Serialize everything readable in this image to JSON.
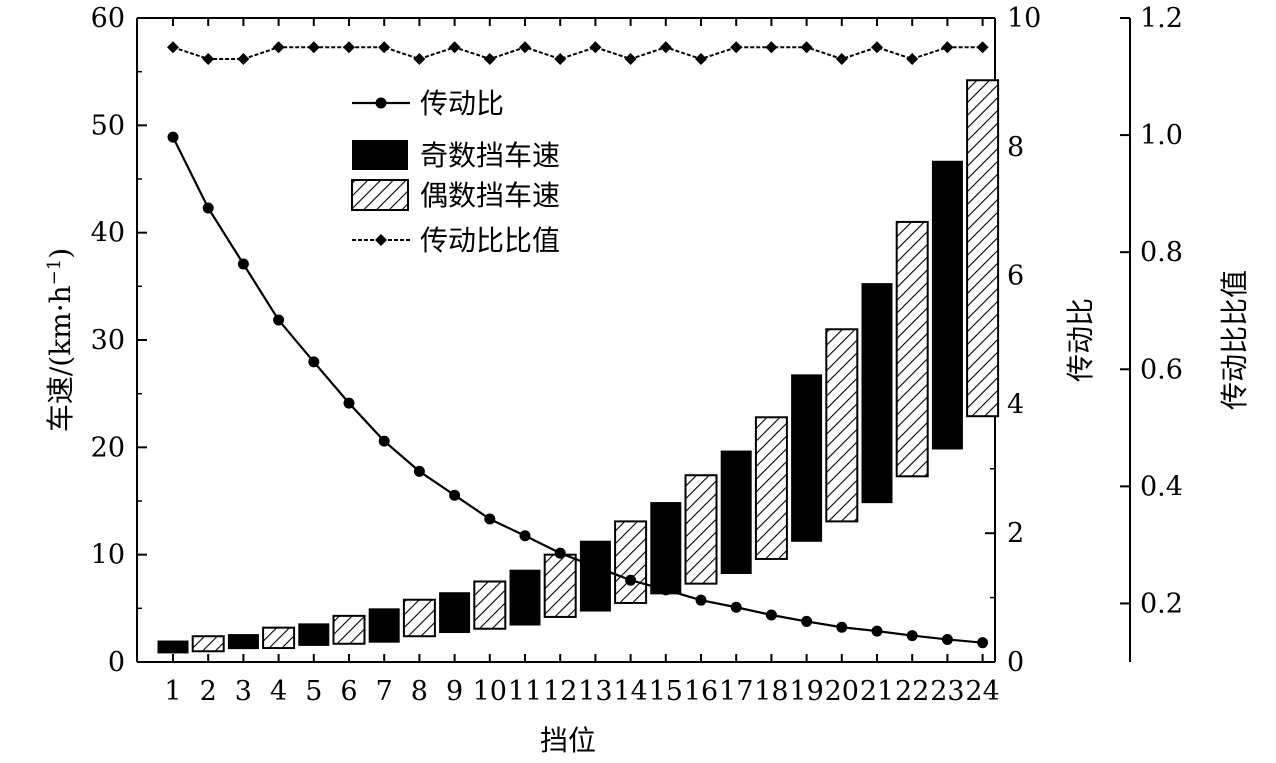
{
  "chart_data": {
    "type": "bar",
    "xlabel": "挡位",
    "categories": [
      "1",
      "2",
      "3",
      "4",
      "5",
      "6",
      "7",
      "8",
      "9",
      "10",
      "11",
      "12",
      "13",
      "14",
      "15",
      "16",
      "17",
      "18",
      "19",
      "20",
      "21",
      "22",
      "23",
      "24"
    ],
    "axes": {
      "left": {
        "label_main": "车速/(km·h",
        "label_sup": "−1",
        "label_close": ")",
        "range": [
          0,
          60
        ],
        "ticks": [
          "0",
          "10",
          "20",
          "30",
          "40",
          "50",
          "60"
        ]
      },
      "right1": {
        "label": "传动比",
        "range": [
          0,
          10
        ],
        "ticks": [
          "0",
          "2",
          "4",
          "6",
          "8",
          "10"
        ]
      },
      "right2": {
        "label": "传动比比值",
        "range": [
          0.1,
          1.2
        ],
        "ticks": [
          "0.2",
          "0.4",
          "0.6",
          "0.8",
          "1.0",
          "1.2"
        ]
      }
    },
    "legend": {
      "position": "top-center",
      "entries": [
        "传动比",
        "奇数挡车速",
        "偶数挡车速",
        "传动比比值"
      ]
    },
    "series": [
      {
        "name": "奇数挡车速",
        "kind": "floating-bar",
        "axis": "left",
        "style": "solid",
        "gears": [
          1,
          3,
          5,
          7,
          9,
          11,
          13,
          15,
          17,
          19,
          21,
          23
        ],
        "low": [
          0.8,
          1.2,
          1.5,
          1.8,
          2.7,
          3.4,
          4.7,
          6.3,
          8.2,
          11.2,
          14.8,
          19.8
        ],
        "high": [
          2.0,
          2.6,
          3.6,
          5.0,
          6.5,
          8.6,
          11.3,
          14.9,
          19.7,
          26.8,
          35.3,
          46.7
        ]
      },
      {
        "name": "偶数挡车速",
        "kind": "floating-bar",
        "axis": "left",
        "style": "hatched",
        "gears": [
          2,
          4,
          6,
          8,
          10,
          12,
          14,
          16,
          18,
          20,
          22,
          24
        ],
        "low": [
          1.0,
          1.3,
          1.7,
          2.4,
          3.1,
          4.2,
          5.5,
          7.3,
          9.6,
          13.1,
          17.3,
          22.9
        ],
        "high": [
          2.4,
          3.2,
          4.3,
          5.8,
          7.5,
          10.0,
          13.1,
          17.4,
          22.8,
          31.0,
          41.0,
          54.2
        ]
      },
      {
        "name": "传动比",
        "kind": "line",
        "axis": "right1",
        "marker": "circle",
        "x": [
          1,
          2,
          3,
          4,
          5,
          6,
          7,
          8,
          9,
          10,
          11,
          12,
          13,
          14,
          15,
          16,
          17,
          18,
          19,
          20,
          21,
          22,
          23,
          24
        ],
        "values": [
          8.15,
          7.05,
          6.18,
          5.31,
          4.66,
          4.02,
          3.43,
          2.96,
          2.59,
          2.22,
          1.96,
          1.69,
          1.48,
          1.27,
          1.12,
          0.96,
          0.85,
          0.73,
          0.63,
          0.54,
          0.48,
          0.41,
          0.35,
          0.3
        ]
      },
      {
        "name": "传动比比值",
        "kind": "line",
        "axis": "right2",
        "marker": "diamond",
        "x": [
          1,
          2,
          3,
          4,
          5,
          6,
          7,
          8,
          9,
          10,
          11,
          12,
          13,
          14,
          15,
          16,
          17,
          18,
          19,
          20,
          21,
          22,
          23,
          24
        ],
        "values": [
          1.15,
          1.13,
          1.13,
          1.15,
          1.15,
          1.15,
          1.15,
          1.13,
          1.15,
          1.13,
          1.15,
          1.13,
          1.15,
          1.13,
          1.15,
          1.13,
          1.15,
          1.15,
          1.15,
          1.13,
          1.15,
          1.13,
          1.15,
          1.15
        ]
      }
    ]
  }
}
